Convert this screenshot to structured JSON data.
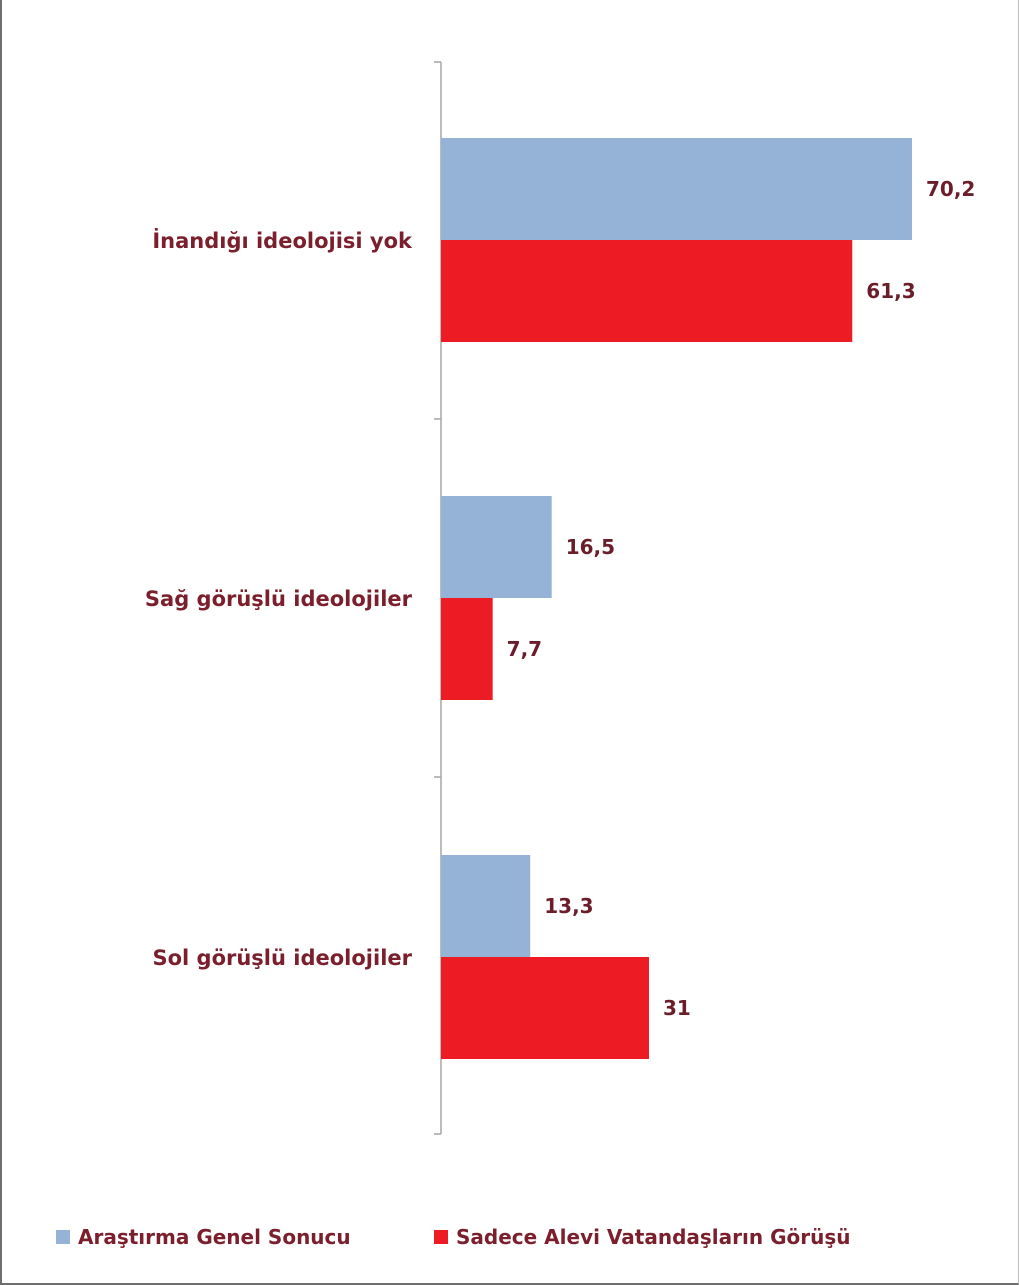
{
  "chart_data": {
    "type": "bar",
    "orientation": "horizontal",
    "categories": [
      "İnandığı ideolojisi yok",
      "Sağ görüşlü ideolojiler",
      "Sol görüşlü ideolojiler"
    ],
    "series": [
      {
        "name": "Araştırma Genel Sonucu",
        "values": [
          70.2,
          16.5,
          13.3
        ],
        "labels": [
          "70,2",
          "16,5",
          "13,3"
        ],
        "color": "#95b3d7"
      },
      {
        "name": "Sadece Alevi Vatandaşların Görüşü",
        "values": [
          61.3,
          7.7,
          31
        ],
        "labels": [
          "61,3",
          "7,7",
          "31"
        ],
        "color": "#ed1c24"
      }
    ],
    "title": "",
    "xlabel": "",
    "ylabel": "",
    "xlim": [
      0,
      70.2
    ],
    "grid": false,
    "legend": "bottom-left"
  }
}
